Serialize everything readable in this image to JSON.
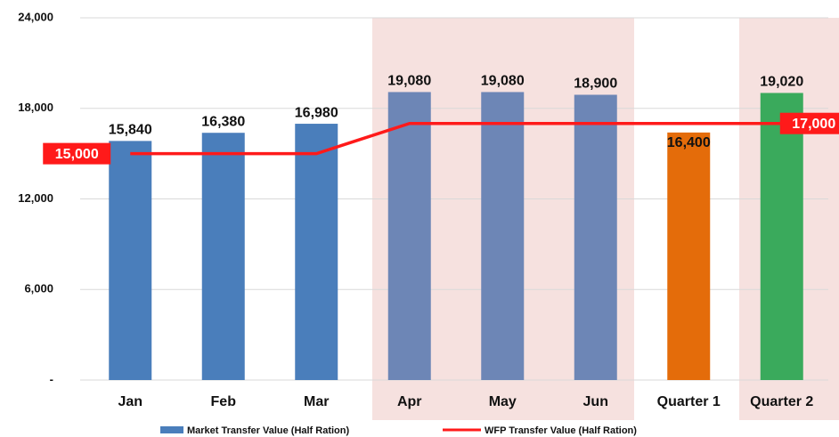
{
  "chart_data": {
    "type": "bar",
    "categories": [
      "Jan",
      "Feb",
      "Mar",
      "Apr",
      "May",
      "Jun",
      "Quarter 1",
      "Quarter 2"
    ],
    "series": [
      {
        "name": "Market Transfer Value (Half Ration)",
        "type": "bar",
        "color": "#4a7ebb",
        "colors": [
          "#4a7ebb",
          "#4a7ebb",
          "#4a7ebb",
          "#6d86b6",
          "#6d86b6",
          "#6d86b6",
          "#e46c0a",
          "#3aaa5c"
        ],
        "values": [
          15840,
          16380,
          16980,
          19080,
          19080,
          18900,
          16400,
          19020
        ],
        "value_labels": [
          "15,840",
          "16,380",
          "16,980",
          "19,080",
          "19,080",
          "18,900",
          "16,400",
          "19,020"
        ]
      },
      {
        "name": "WFP Transfer Value (Half Ration)",
        "type": "line",
        "color": "#ff1a1a",
        "values": [
          15000,
          15000,
          15000,
          17000,
          17000,
          17000,
          17000,
          17000
        ],
        "value_labels": [
          "15,000",
          null,
          null,
          null,
          null,
          null,
          null,
          "17,000"
        ]
      }
    ],
    "ylim": [
      0,
      24000
    ],
    "yticks": [
      {
        "value": 0,
        "label": "-"
      },
      {
        "value": 6000,
        "label": "6,000"
      },
      {
        "value": 12000,
        "label": "12,000"
      },
      {
        "value": 18000,
        "label": "18,000"
      },
      {
        "value": 24000,
        "label": "24,000"
      }
    ],
    "grid": true
  }
}
